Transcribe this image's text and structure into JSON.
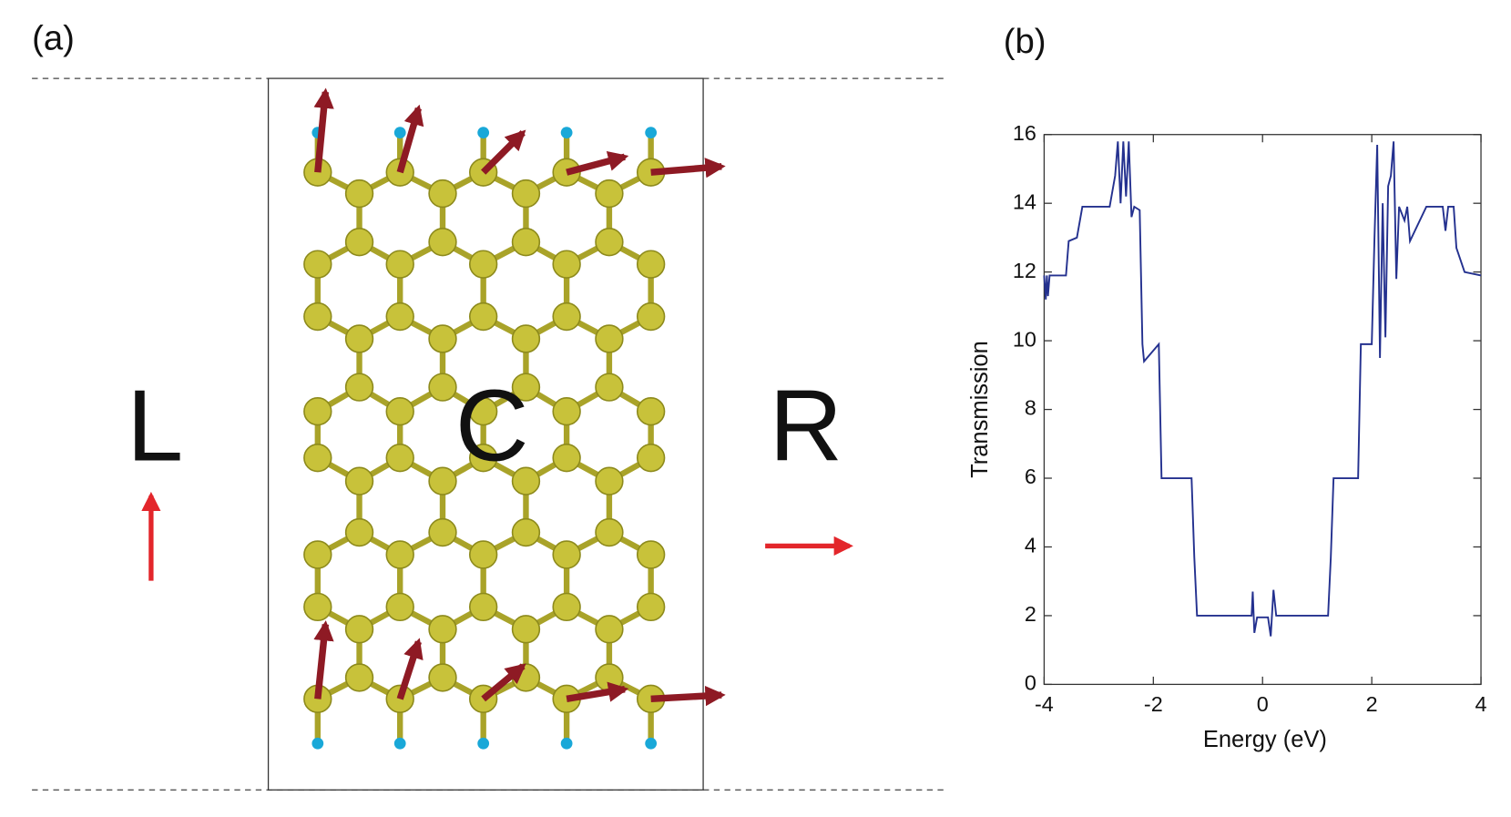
{
  "panel_a": {
    "label": "(a)",
    "left": "L",
    "center": "C",
    "right": "R"
  },
  "chart_data": {
    "type": "line",
    "panel_label": "(b)",
    "xlabel": "Energy (eV)",
    "ylabel": "Transmission",
    "xlim": [
      -4,
      4
    ],
    "ylim": [
      0,
      16
    ],
    "xticks": [
      -4,
      -2,
      0,
      2,
      4
    ],
    "yticks": [
      0,
      2,
      4,
      6,
      8,
      10,
      12,
      14,
      16
    ],
    "color": "#24318f",
    "x": [
      -4.0,
      -3.97,
      -3.95,
      -3.93,
      -3.9,
      -3.6,
      -3.55,
      -3.4,
      -3.3,
      -3.0,
      -2.8,
      -2.7,
      -2.65,
      -2.6,
      -2.55,
      -2.5,
      -2.45,
      -2.4,
      -2.35,
      -2.25,
      -2.2,
      -2.17,
      -1.9,
      -1.85,
      -1.3,
      -1.25,
      -1.2,
      -0.2,
      -0.18,
      -0.15,
      -0.1,
      0.1,
      0.15,
      0.2,
      0.25,
      1.2,
      1.25,
      1.3,
      1.75,
      1.8,
      2.0,
      2.05,
      2.1,
      2.15,
      2.2,
      2.25,
      2.3,
      2.35,
      2.4,
      2.45,
      2.5,
      2.6,
      2.65,
      2.7,
      3.0,
      3.3,
      3.35,
      3.4,
      3.5,
      3.55,
      3.7,
      4.0
    ],
    "values": [
      11.9,
      11.2,
      11.9,
      11.3,
      11.9,
      11.9,
      12.9,
      13.0,
      13.9,
      13.9,
      13.9,
      14.8,
      15.8,
      14.0,
      15.8,
      14.2,
      15.8,
      13.6,
      13.9,
      13.8,
      9.9,
      9.4,
      9.9,
      6.0,
      6.0,
      3.7,
      2.0,
      2.0,
      2.7,
      1.5,
      1.95,
      1.95,
      1.4,
      2.75,
      2.0,
      2.0,
      3.7,
      6.0,
      6.0,
      9.9,
      9.9,
      13.0,
      15.7,
      9.5,
      14.0,
      10.1,
      14.5,
      14.8,
      15.8,
      11.8,
      13.9,
      13.5,
      13.9,
      12.9,
      13.9,
      13.9,
      13.2,
      13.9,
      13.9,
      12.7,
      12.0,
      11.9
    ]
  }
}
